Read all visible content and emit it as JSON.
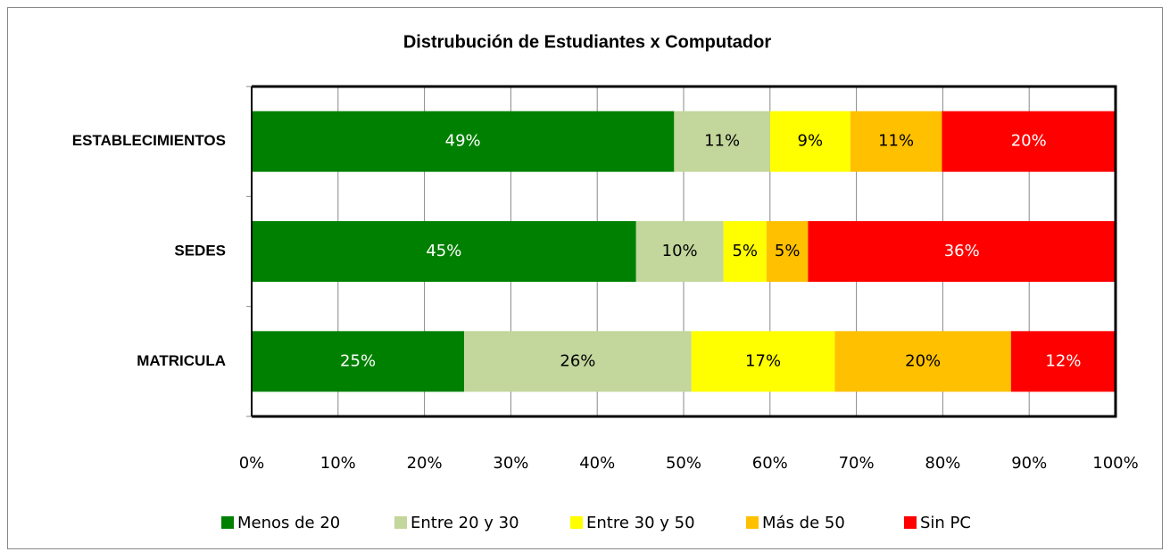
{
  "chart_data": {
    "type": "stacked-bar-horizontal",
    "title": "Distrubución de Estudiantes x Computador",
    "categories": [
      "ESTABLECIMIENTOS",
      "SEDES",
      "MATRICULA"
    ],
    "series": [
      {
        "name": "Menos de 20",
        "color": "#008000",
        "label_color": "#ffffff",
        "values": [
          48.9,
          44.5,
          24.6
        ],
        "value_labels": [
          "49%",
          "45%",
          "25%"
        ]
      },
      {
        "name": "Entre 20 y 30",
        "color": "#c3d69b",
        "label_color": "#000000",
        "values": [
          11.1,
          10.1,
          26.3
        ],
        "value_labels": [
          "11%",
          "10%",
          "26%"
        ]
      },
      {
        "name": "Entre 30 y 50",
        "color": "#ffff00",
        "label_color": "#000000",
        "values": [
          9.3,
          5.0,
          16.6
        ],
        "value_labels": [
          "9%",
          "5%",
          "17%"
        ]
      },
      {
        "name": "Más de 50",
        "color": "#ffc000",
        "label_color": "#000000",
        "values": [
          10.6,
          4.8,
          20.4
        ],
        "value_labels": [
          "11%",
          "5%",
          "20%"
        ]
      },
      {
        "name": "Sin PC",
        "color": "#ff0000",
        "label_color": "#ffffff",
        "values": [
          20.1,
          35.6,
          12.1
        ],
        "value_labels": [
          "20%",
          "36%",
          "12%"
        ]
      }
    ],
    "xlim": [
      0,
      100
    ],
    "xticks": [
      {
        "value": 0,
        "label": "0%"
      },
      {
        "value": 10,
        "label": "10%"
      },
      {
        "value": 20,
        "label": "20%"
      },
      {
        "value": 30,
        "label": "30%"
      },
      {
        "value": 40,
        "label": "40%"
      },
      {
        "value": 50,
        "label": "50%"
      },
      {
        "value": 60,
        "label": "60%"
      },
      {
        "value": 70,
        "label": "70%"
      },
      {
        "value": 80,
        "label": "80%"
      },
      {
        "value": 90,
        "label": "90%"
      },
      {
        "value": 100,
        "label": "100%"
      }
    ],
    "grid": true,
    "legend": "bottom"
  }
}
